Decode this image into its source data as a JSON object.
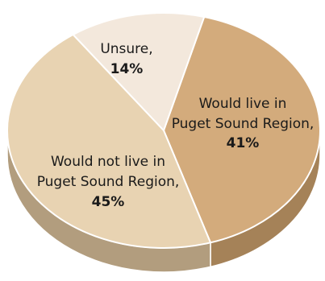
{
  "chart_data": {
    "type": "pie",
    "style": "3d",
    "slices": [
      {
        "label_lines": [
          "Would live in",
          "Puget Sound Region,"
        ],
        "value": 41,
        "percent_label": "41%",
        "color": "#d3ab7c",
        "side_color": "#a58258"
      },
      {
        "label_lines": [
          "Would not live in",
          "Puget Sound Region,"
        ],
        "value": 45,
        "percent_label": "45%",
        "color": "#e8d3b2",
        "side_color": "#b29d7e"
      },
      {
        "label_lines": [
          "Unsure,"
        ],
        "value": 14,
        "percent_label": "14%",
        "color": "#f3e8dc",
        "side_color": "#c2b19c"
      }
    ]
  }
}
